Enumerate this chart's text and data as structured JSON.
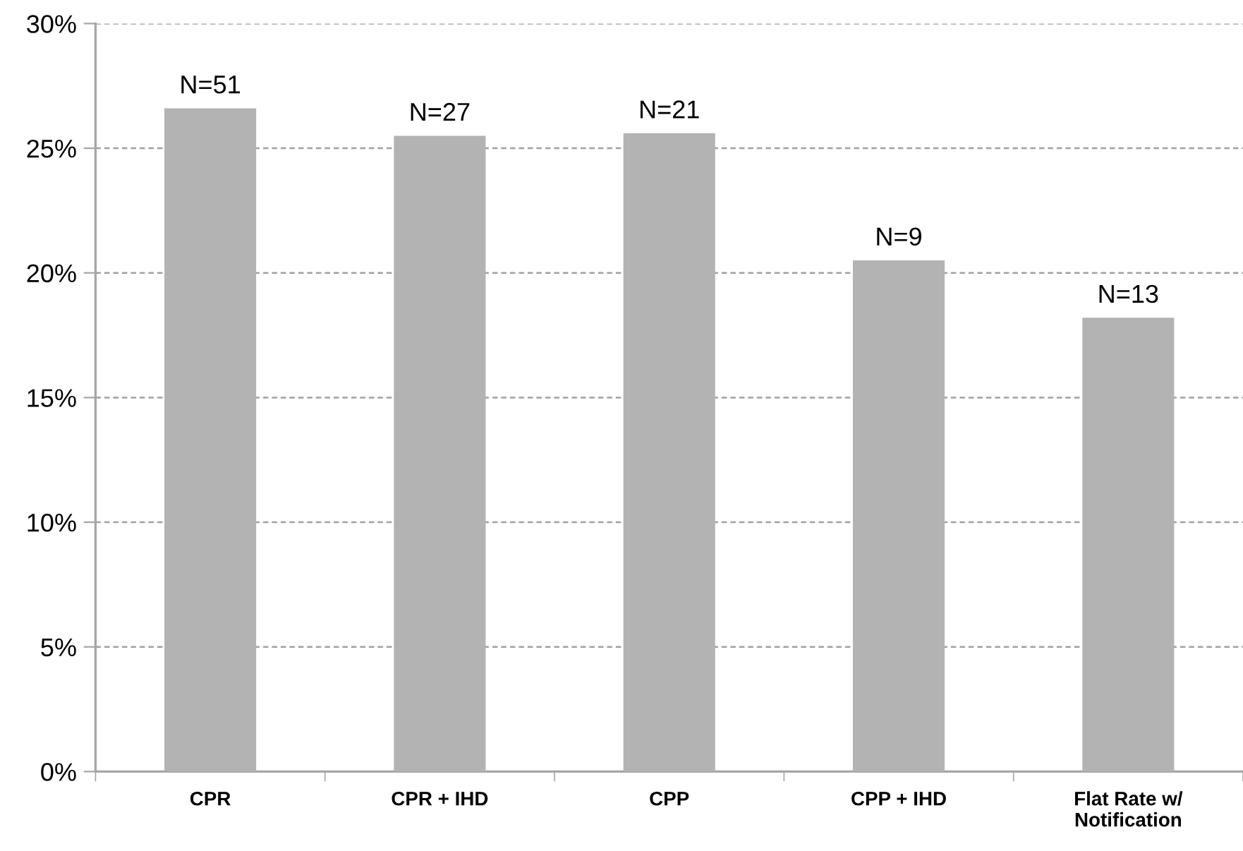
{
  "chart_data": {
    "type": "bar",
    "categories": [
      "CPR",
      "CPR + IHD",
      "CPP",
      "CPP + IHD",
      "Flat Rate w/\nNotification"
    ],
    "values": [
      26.6,
      25.5,
      25.6,
      20.5,
      18.2
    ],
    "annotations": [
      {
        "text": "N=51",
        "x": "CPR",
        "y": 26.6
      },
      {
        "text": "N=27",
        "x": "CPR + IHD",
        "y": 25.5
      },
      {
        "text": "N=21",
        "x": "CPP",
        "y": 25.6
      },
      {
        "text": "N=9",
        "x": "CPP + IHD",
        "y": 20.5
      },
      {
        "text": "N=13",
        "x": "Flat Rate w/\nNotification",
        "y": 18.2
      }
    ],
    "color": "#b3b3b3",
    "ylim": [
      0,
      30
    ],
    "yticks": [
      {
        "value": 0,
        "label": "0%"
      },
      {
        "value": 5,
        "label": "5%"
      },
      {
        "value": 10,
        "label": "10%"
      },
      {
        "value": 15,
        "label": "15%"
      },
      {
        "value": 20,
        "label": "20%"
      },
      {
        "value": 25,
        "label": "25%"
      },
      {
        "value": 30,
        "label": "30%"
      }
    ],
    "grid": "y",
    "legend": false
  }
}
